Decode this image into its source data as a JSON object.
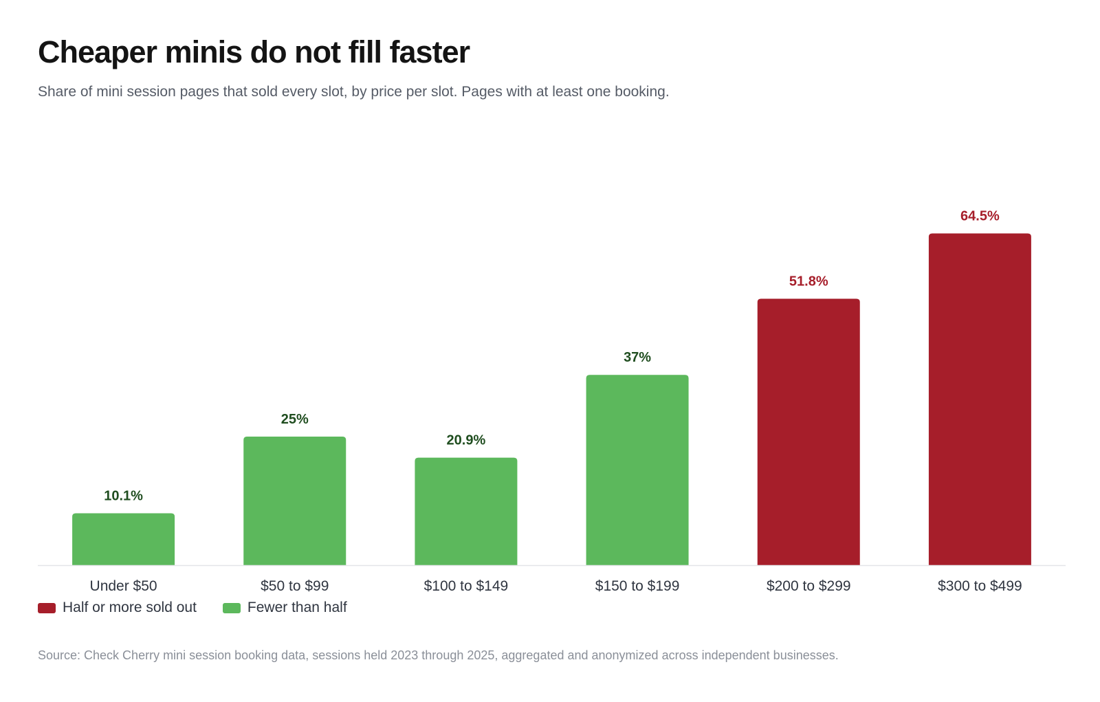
{
  "header": {
    "title": "Cheaper minis do not fill faster",
    "subtitle": "Share of mini session pages that sold every slot, by price per slot. Pages with at least one booking."
  },
  "colors": {
    "half_or_more": "#a61e2a",
    "half_or_more_label": "#a61e2a",
    "fewer_than_half": "#5cb85c",
    "fewer_than_half_label": "#1f4d1f",
    "baseline": "#e3e5e8"
  },
  "chart_data": {
    "type": "bar",
    "categories": [
      "Under $50",
      "$50 to $99",
      "$100 to $149",
      "$150 to $199",
      "$200 to $299",
      "$300 to $499"
    ],
    "values": [
      10.1,
      25,
      20.9,
      37,
      51.8,
      64.5
    ],
    "value_labels": [
      "10.1%",
      "25%",
      "20.9%",
      "37%",
      "51.8%",
      "64.5%"
    ],
    "groups": [
      "fewer_than_half",
      "fewer_than_half",
      "fewer_than_half",
      "fewer_than_half",
      "half_or_more",
      "half_or_more"
    ],
    "ylim": [
      0,
      70
    ],
    "grid": false,
    "legend_position": "bottom-left"
  },
  "legend": [
    {
      "key": "half_or_more",
      "label": "Half or more sold out"
    },
    {
      "key": "fewer_than_half",
      "label": "Fewer than half"
    }
  ],
  "footer": {
    "source": "Source: Check Cherry mini session booking data, sessions held 2023 through 2025, aggregated and anonymized across independent businesses."
  }
}
